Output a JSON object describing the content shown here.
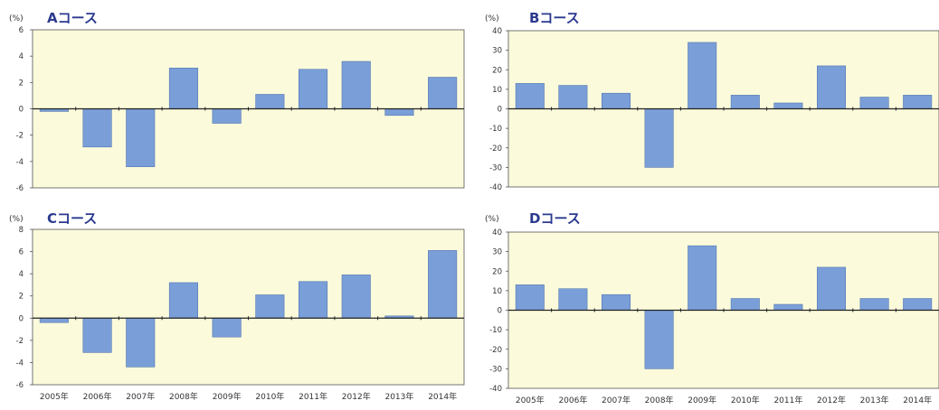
{
  "chart_data": [
    {
      "type": "bar",
      "title": "Aコース",
      "ylabel": "(%)",
      "ylim": [
        -6,
        6
      ],
      "yticks": [
        6,
        4,
        2,
        0,
        -2,
        -4,
        -6
      ],
      "categories": [
        "2005年",
        "2006年",
        "2007年",
        "2008年",
        "2009年",
        "2010年",
        "2011年",
        "2012年",
        "2013年",
        "2014年"
      ],
      "values": [
        -0.2,
        -2.9,
        -4.4,
        3.1,
        -1.1,
        1.1,
        3.0,
        3.6,
        -0.5,
        2.4
      ],
      "show_xlabels": false
    },
    {
      "type": "bar",
      "title": "Bコース",
      "ylabel": "(%)",
      "ylim": [
        -40,
        40
      ],
      "yticks": [
        40,
        30,
        20,
        10,
        0,
        -10,
        -20,
        -30,
        -40
      ],
      "categories": [
        "2005年",
        "2006年",
        "2007年",
        "2008年",
        "2009年",
        "2010年",
        "2011年",
        "2012年",
        "2013年",
        "2014年"
      ],
      "values": [
        13,
        12,
        8,
        -30,
        34,
        7,
        3,
        22,
        6,
        7
      ],
      "show_xlabels": false
    },
    {
      "type": "bar",
      "title": "Cコース",
      "ylabel": "(%)",
      "ylim": [
        -6,
        8
      ],
      "yticks": [
        8,
        6,
        4,
        2,
        0,
        -2,
        -4,
        -6
      ],
      "categories": [
        "2005年",
        "2006年",
        "2007年",
        "2008年",
        "2009年",
        "2010年",
        "2011年",
        "2012年",
        "2013年",
        "2014年"
      ],
      "values": [
        -0.4,
        -3.1,
        -4.4,
        3.2,
        -1.7,
        2.1,
        3.3,
        3.9,
        0.2,
        6.1
      ],
      "show_xlabels": true
    },
    {
      "type": "bar",
      "title": "Dコース",
      "ylabel": "(%)",
      "ylim": [
        -40,
        40
      ],
      "yticks": [
        40,
        30,
        20,
        10,
        0,
        -10,
        -20,
        -30,
        -40
      ],
      "categories": [
        "2005年",
        "2006年",
        "2007年",
        "2008年",
        "2009年",
        "2010年",
        "2011年",
        "2012年",
        "2013年",
        "2014年"
      ],
      "values": [
        13,
        11,
        8,
        -30,
        33,
        6,
        3,
        22,
        6,
        6
      ],
      "show_xlabels": true
    }
  ],
  "style": {
    "plot_bg": "#fbfbdc",
    "plot_border": "#555555",
    "bar_fill": "#7a9fd8",
    "bar_stroke": "#5577b0",
    "zero_line": "#222222",
    "title_color": "#2b3a8f"
  }
}
